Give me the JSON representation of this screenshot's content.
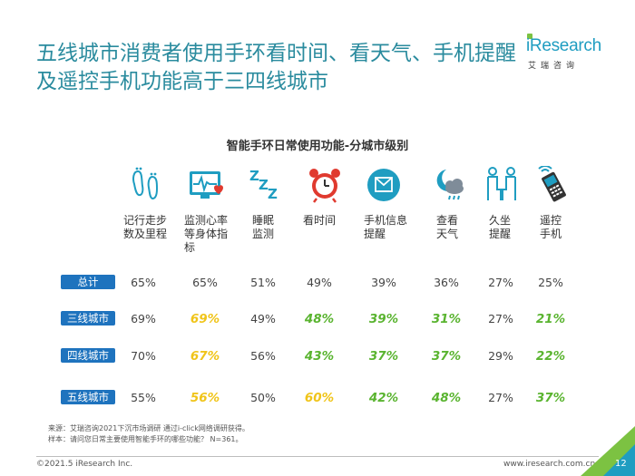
{
  "title": "五线城市消费者使用手环看时间、看天气、手机提醒及遥控手机功能高于三四线城市",
  "logo": {
    "brand": "iResearch",
    "cn": "艾瑞咨询"
  },
  "chart_title": "智能手环日常使用功能-分城市级别",
  "features": [
    {
      "icon": "footprints-icon",
      "label": "记行走步数及里程"
    },
    {
      "icon": "heart-monitor-icon",
      "label": "监测心率等身体指标"
    },
    {
      "icon": "sleep-icon",
      "label": "睡眠监测"
    },
    {
      "icon": "alarm-clock-icon",
      "label": "看时间"
    },
    {
      "icon": "message-icon",
      "label": "手机信息提醒"
    },
    {
      "icon": "weather-icon",
      "label": "查看天气"
    },
    {
      "icon": "sitting-icon",
      "label": "久坐提醒"
    },
    {
      "icon": "remote-phone-icon",
      "label": "遥控手机"
    }
  ],
  "rows": [
    {
      "label": "总计",
      "values": [
        "65%",
        "65%",
        "51%",
        "49%",
        "39%",
        "36%",
        "27%",
        "25%"
      ],
      "hl": [
        "",
        "",
        "",
        "",
        "",
        "",
        "",
        ""
      ]
    },
    {
      "label": "三线城市",
      "values": [
        "69%",
        "69%",
        "49%",
        "48%",
        "39%",
        "31%",
        "27%",
        "21%"
      ],
      "hl": [
        "",
        "y",
        "",
        "g",
        "g",
        "g",
        "",
        "g"
      ]
    },
    {
      "label": "四线城市",
      "values": [
        "70%",
        "67%",
        "56%",
        "43%",
        "37%",
        "37%",
        "29%",
        "22%"
      ],
      "hl": [
        "",
        "y",
        "",
        "g",
        "g",
        "g",
        "",
        "g"
      ]
    },
    {
      "label": "五线城市",
      "values": [
        "55%",
        "56%",
        "50%",
        "60%",
        "42%",
        "48%",
        "27%",
        "37%"
      ],
      "hl": [
        "",
        "y",
        "",
        "y",
        "g",
        "g",
        "",
        "g"
      ]
    }
  ],
  "colors": {
    "title": "#2a8b9e",
    "row_label_bg": "#1e73be",
    "highlight_yellow": "#f0c419",
    "highlight_green": "#5ab430",
    "icon_blue": "#1f9dc1",
    "icon_red": "#e03a2f"
  },
  "notes": {
    "source": "来源：艾瑞咨询2021下沉市场调研 通过i-click网络调研获得。",
    "sample": "样本：请问您日常主要使用智能手环的哪些功能？ N=361。"
  },
  "footer": {
    "copyright": "©2021.5 iResearch Inc.",
    "url": "www.iresearch.com.cn",
    "page": "12"
  },
  "chart_data": {
    "type": "table",
    "title": "智能手环日常使用功能-分城市级别",
    "columns": [
      "记行走步数及里程",
      "监测心率等身体指标",
      "睡眠监测",
      "看时间",
      "手机信息提醒",
      "查看天气",
      "久坐提醒",
      "遥控手机"
    ],
    "series": [
      {
        "name": "总计",
        "values": [
          65,
          65,
          51,
          49,
          39,
          36,
          27,
          25
        ]
      },
      {
        "name": "三线城市",
        "values": [
          69,
          69,
          49,
          48,
          39,
          31,
          27,
          21
        ]
      },
      {
        "name": "四线城市",
        "values": [
          70,
          67,
          56,
          43,
          37,
          37,
          29,
          22
        ]
      },
      {
        "name": "五线城市",
        "values": [
          55,
          56,
          50,
          60,
          42,
          48,
          27,
          37
        ]
      }
    ]
  }
}
